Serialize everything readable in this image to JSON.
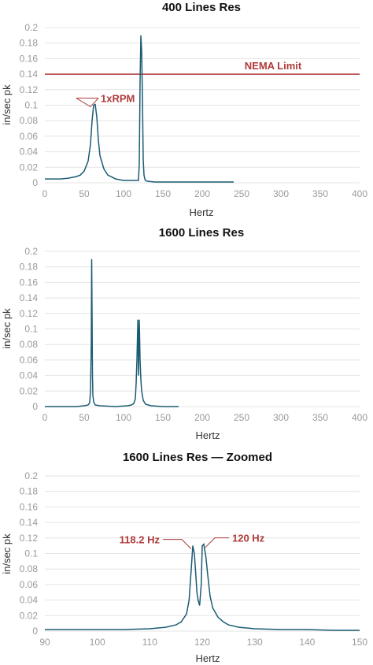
{
  "chart_data": [
    {
      "type": "line",
      "title": "400 Lines Res",
      "xlabel": "Hertz",
      "ylabel": "in/sec pk",
      "xlim": [
        0,
        400
      ],
      "ylim": [
        0,
        0.2
      ],
      "xticks": [
        0,
        50,
        100,
        150,
        200,
        250,
        300,
        350,
        400
      ],
      "yticks": [
        0,
        0.02,
        0.04,
        0.06,
        0.08,
        0.1,
        0.12,
        0.14,
        0.16,
        0.18,
        0.2
      ],
      "grid": "horizontal",
      "color": "#1b5c73",
      "series": [
        {
          "x": [
            0,
            20,
            30,
            40,
            45,
            50,
            55,
            58,
            60,
            62,
            64,
            66,
            68,
            70,
            75,
            80,
            90,
            100,
            110,
            115,
            119,
            120,
            121,
            122,
            123,
            124,
            125,
            126,
            127,
            128,
            130,
            140,
            150,
            200,
            240
          ],
          "y": [
            0.005,
            0.005,
            0.006,
            0.008,
            0.01,
            0.015,
            0.028,
            0.05,
            0.08,
            0.1,
            0.101,
            0.085,
            0.055,
            0.035,
            0.018,
            0.01,
            0.005,
            0.003,
            0.003,
            0.003,
            0.003,
            0.025,
            0.13,
            0.19,
            0.17,
            0.11,
            0.03,
            0.01,
            0.005,
            0.003,
            0.002,
            0.001,
            0.001,
            0.001,
            0.001
          ]
        }
      ],
      "hlines": [
        {
          "y": 0.14,
          "label": "NEMA Limit",
          "color": "#b03a3a"
        }
      ],
      "annotations": [
        {
          "text": "1xRPM",
          "x": 62,
          "y": 0.101,
          "color": "#b03a3a"
        }
      ]
    },
    {
      "type": "line",
      "title": "1600 Lines Res",
      "xlabel": "Hertz",
      "ylabel": "in/sec pk",
      "xlim": [
        0,
        400
      ],
      "ylim": [
        0,
        0.2
      ],
      "xticks": [
        0,
        50,
        100,
        150,
        200,
        250,
        300,
        350,
        400
      ],
      "yticks": [
        0,
        0.02,
        0.04,
        0.06,
        0.08,
        0.1,
        0.12,
        0.14,
        0.16,
        0.18,
        0.2
      ],
      "grid": "horizontal",
      "color": "#1b5c73",
      "series": [
        {
          "x": [
            0,
            40,
            50,
            55,
            57,
            58,
            59,
            59.5,
            60,
            60.5,
            61,
            62,
            64,
            70,
            90,
            105,
            110,
            113,
            115,
            116,
            117,
            118.2,
            119,
            120,
            121,
            122,
            123,
            125,
            128,
            135,
            150,
            170
          ],
          "y": [
            0,
            0,
            0.001,
            0.002,
            0.005,
            0.02,
            0.08,
            0.19,
            0.12,
            0.04,
            0.015,
            0.006,
            0.002,
            0.001,
            0,
            0.001,
            0.002,
            0.004,
            0.01,
            0.03,
            0.06,
            0.112,
            0.04,
            0.112,
            0.06,
            0.035,
            0.02,
            0.008,
            0.003,
            0.001,
            0,
            0
          ]
        }
      ],
      "hlines": [],
      "annotations": []
    },
    {
      "type": "line",
      "title": "1600 Lines Res — Zoomed",
      "xlabel": "Hertz",
      "ylabel": "in/sec pk",
      "xlim": [
        90,
        150
      ],
      "ylim": [
        0,
        0.2
      ],
      "xticks": [
        90,
        100,
        110,
        120,
        130,
        140,
        150
      ],
      "yticks": [
        0,
        0.02,
        0.04,
        0.06,
        0.08,
        0.1,
        0.12,
        0.14,
        0.16,
        0.18,
        0.2
      ],
      "grid": "horizontal",
      "color": "#1b5c73",
      "series": [
        {
          "x": [
            90,
            95,
            100,
            105,
            110,
            113,
            115,
            116,
            117,
            117.5,
            118,
            118.2,
            118.5,
            119,
            119.2,
            119.5,
            119.8,
            120,
            120.3,
            120.7,
            121,
            121.5,
            122,
            123,
            124,
            125,
            127,
            130,
            135,
            140,
            145,
            150
          ],
          "y": [
            0.002,
            0.002,
            0.002,
            0.002,
            0.003,
            0.005,
            0.008,
            0.012,
            0.022,
            0.04,
            0.09,
            0.11,
            0.1,
            0.05,
            0.04,
            0.033,
            0.06,
            0.11,
            0.112,
            0.095,
            0.075,
            0.045,
            0.03,
            0.018,
            0.012,
            0.008,
            0.005,
            0.003,
            0.002,
            0.002,
            0.001,
            0.001
          ]
        }
      ],
      "hlines": [],
      "annotations": [
        {
          "text": "118.2 Hz",
          "x": 118.2,
          "y": 0.11,
          "color": "#b03a3a",
          "side": "left"
        },
        {
          "text": "120 Hz",
          "x": 120.3,
          "y": 0.112,
          "color": "#b03a3a",
          "side": "right"
        }
      ]
    }
  ]
}
